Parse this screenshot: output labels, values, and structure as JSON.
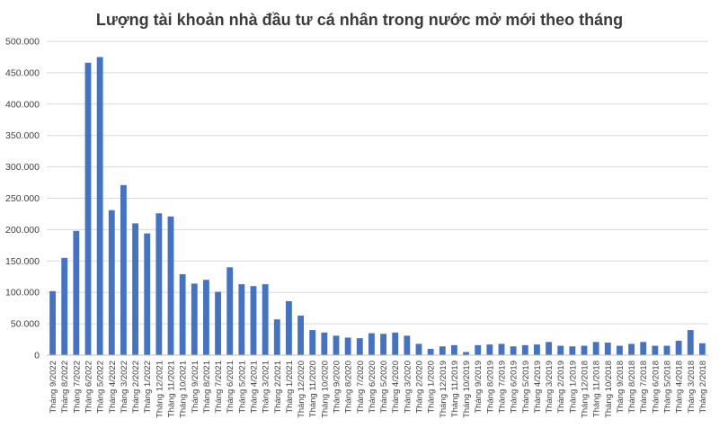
{
  "chart_data": {
    "type": "bar",
    "title": "Lượng tài khoản nhà đầu tư cá nhân trong nước mở mới theo tháng",
    "xlabel": "",
    "ylabel": "",
    "ylim": [
      0,
      500000
    ],
    "y_ticks": [
      "0",
      "50.000",
      "100.000",
      "150.000",
      "200.000",
      "250.000",
      "300.000",
      "350.000",
      "400.000",
      "450.000",
      "500.000"
    ],
    "grid": true,
    "legend": "none",
    "bar_color": "#4472c4",
    "categories": [
      "Tháng 9/2022",
      "Tháng 8/2022",
      "Tháng 7/2022",
      "Tháng 6/2022",
      "Tháng 5/2022",
      "Tháng 4/2022",
      "Tháng 3/2022",
      "Tháng 2/2022",
      "Tháng 1/2022",
      "Tháng 12/2021",
      "Tháng 11/2021",
      "Tháng 10/2021",
      "Tháng 9/2021",
      "Tháng 8/2021",
      "Tháng 7/2021",
      "Tháng 6/2021",
      "Tháng 5/2021",
      "Tháng 4/2021",
      "Tháng 3/2021",
      "Tháng 2/2021",
      "Tháng 1/2021",
      "Tháng 12/2020",
      "Tháng 11/2020",
      "Tháng 10/2020",
      "Tháng 9/2020",
      "Tháng 8/2020",
      "Tháng 7/2020",
      "Tháng 6/2020",
      "Tháng 5/2020",
      "Tháng 4/2020",
      "Tháng 3/2020",
      "Tháng 2/2020",
      "Tháng 1/2020",
      "Tháng 12/2019",
      "Tháng 11/2019",
      "Tháng 10/2019",
      "Tháng 9/2019",
      "Tháng 8/2019",
      "Tháng 7/2019",
      "Tháng 6/2019",
      "Tháng 5/2019",
      "Tháng 4/2019",
      "Tháng 3/2019",
      "Tháng 2/2019",
      "Tháng 1/2019",
      "Tháng 12/2018",
      "Tháng 11/2018",
      "Tháng 10/2018",
      "Tháng 9/2018",
      "Tháng 8/2018",
      "Tháng 7/2018",
      "Tháng 6/2018",
      "Tháng 5/2018",
      "Tháng 4/2018",
      "Tháng 3/2018",
      "Tháng 2/2018"
    ],
    "values": [
      102000,
      155000,
      198000,
      466000,
      475000,
      231000,
      271000,
      210000,
      194000,
      226000,
      221000,
      129000,
      114000,
      120000,
      101000,
      140000,
      113000,
      110000,
      113000,
      57000,
      86000,
      63000,
      40000,
      36000,
      31000,
      28000,
      27000,
      35000,
      34000,
      36000,
      31000,
      18000,
      10000,
      14000,
      16000,
      5000,
      16000,
      17000,
      18000,
      14000,
      16000,
      17000,
      21000,
      15000,
      14000,
      15000,
      21000,
      20000,
      15000,
      18000,
      21000,
      15000,
      15000,
      23000,
      40000,
      19000
    ]
  }
}
